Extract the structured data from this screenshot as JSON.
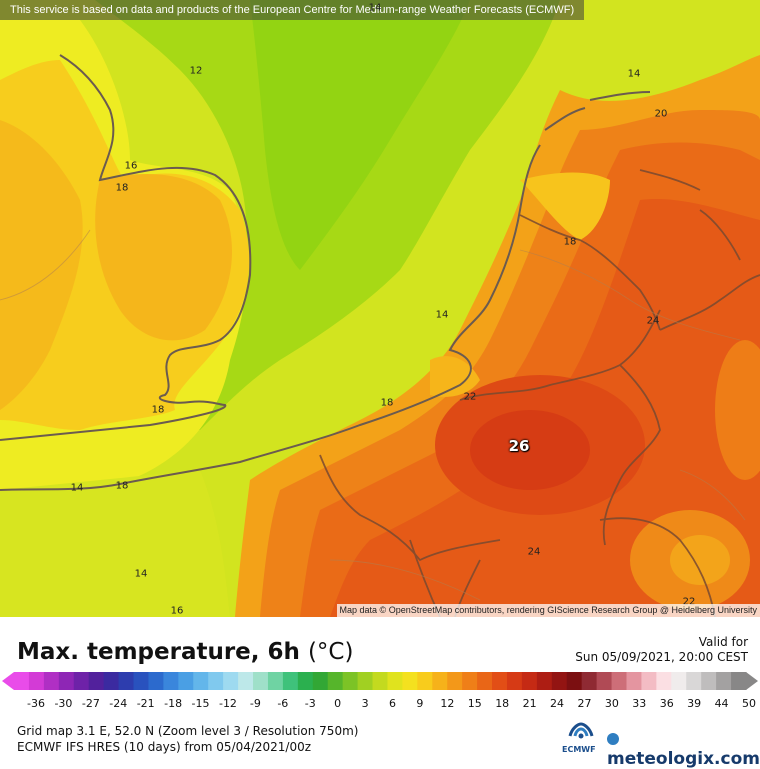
{
  "notice": "This service is based on data and products of the European Centre for Medium-range Weather Forecasts (ECMWF)",
  "attribution": "Map data © OpenStreetMap contributors, rendering GIScience Research Group @ Heidelberg University",
  "contour_labels": [
    "12",
    "14",
    "14",
    "16",
    "18",
    "20",
    "18",
    "14",
    "24",
    "18",
    "22",
    "18",
    "18",
    "14",
    "14",
    "24",
    "16",
    "22"
  ],
  "max_label": "26",
  "title": "Max. temperature, 6h",
  "title_unit": "(°C)",
  "valid_label": "Valid for",
  "valid_time": "Sun 05/09/2021, 20:00 CEST",
  "scale": {
    "ticks": [
      "-36",
      "-30",
      "-27",
      "-24",
      "-21",
      "-18",
      "-15",
      "-12",
      "-9",
      "-6",
      "-3",
      "0",
      "3",
      "6",
      "9",
      "12",
      "15",
      "18",
      "21",
      "24",
      "27",
      "30",
      "33",
      "36",
      "39",
      "44",
      "50"
    ],
    "colors": [
      "#e94ce9",
      "#d33bd6",
      "#b02fc4",
      "#8e26b5",
      "#6e22a8",
      "#52219c",
      "#3b2aa0",
      "#2d3dae",
      "#2952be",
      "#2c6acd",
      "#3a86dc",
      "#4a9fe4",
      "#63b6ea",
      "#80c9ee",
      "#9edaf0",
      "#bde8e9",
      "#9fe0c9",
      "#6fd3a3",
      "#3fc27b",
      "#2bb04f",
      "#32a735",
      "#56b52b",
      "#7cc326",
      "#a1d022",
      "#c3da1f",
      "#e0e31e",
      "#f4e11f",
      "#f8cc1c",
      "#f6b21a",
      "#f39819",
      "#ef7f18",
      "#e96617",
      "#e24e16",
      "#d63a15",
      "#c52a14",
      "#ad1d13",
      "#931412",
      "#7b0f11",
      "#8f2a33",
      "#b04a55",
      "#cd6e78",
      "#e495a0",
      "#f3bcc4",
      "#fbdfe3",
      "#f0ecec",
      "#d9d7d7",
      "#bfbdbd",
      "#a3a1a1",
      "#888787"
    ]
  },
  "grid_info": "Grid map 3.1 E, 52.0 N (Zoom level 3 / Resolution 750m)",
  "model_info": "ECMWF IFS HRES (10 days) from 05/04/2021/00z",
  "ecmwf_logo_text": "ECMWF",
  "brand": "meteologix.com",
  "palette": {
    "yellow_green": "#c8e21c",
    "green": "#9fd80f",
    "yellow": "#f0ee24",
    "light_orange": "#f7c81c",
    "orange": "#f3a218",
    "dark_orange": "#ee7f17",
    "red_orange": "#e55a17",
    "border": "#7a4a30",
    "coast": "#6b5b4f"
  }
}
